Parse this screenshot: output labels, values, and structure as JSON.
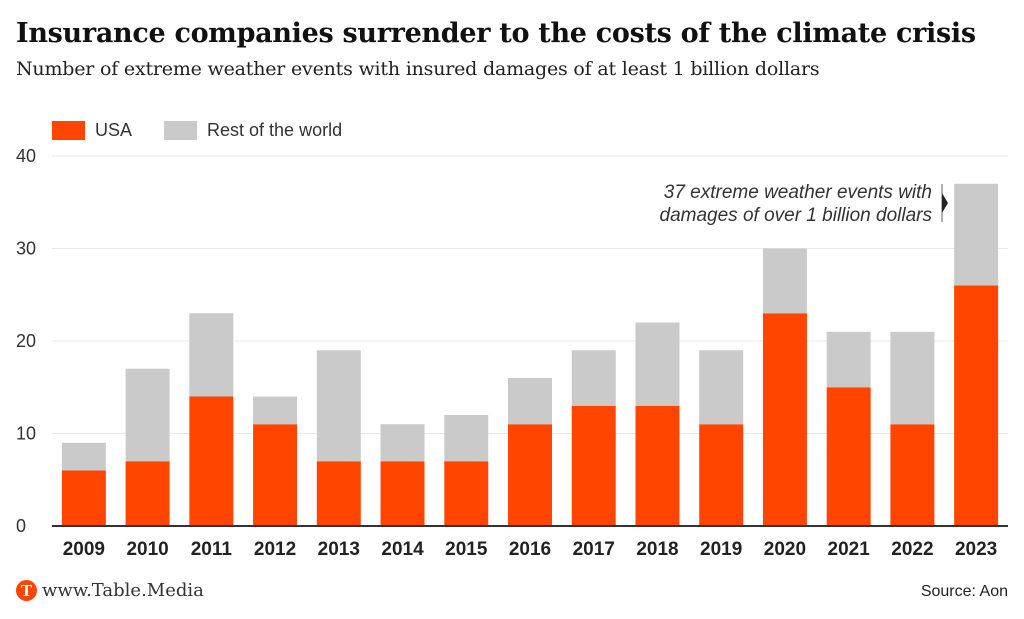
{
  "header": {
    "title": "Insurance companies surrender to the costs of the climate crisis",
    "subtitle": "Number of extreme weather events with insured damages of at least 1 billion dollars"
  },
  "legend": {
    "items": [
      {
        "label": "USA",
        "color": "#ff4500"
      },
      {
        "label": "Rest of the world",
        "color": "#cacaca"
      }
    ]
  },
  "annotation": {
    "line1": "37 extreme weather events with",
    "line2": "damages of over 1 billion dollars"
  },
  "footer": {
    "logo_letter": "T",
    "site": "www.Table.Media",
    "source": "Source: Aon"
  },
  "chart_data": {
    "type": "bar",
    "stacked": true,
    "title": "Insurance companies surrender to the costs of the climate crisis",
    "subtitle": "Number of extreme weather events with insured damages of at least 1 billion dollars",
    "xlabel": "",
    "ylabel": "",
    "ylim": [
      0,
      40
    ],
    "yticks": [
      0,
      10,
      20,
      30,
      40
    ],
    "grid": true,
    "legend_position": "top-left",
    "categories": [
      "2009",
      "2010",
      "2011",
      "2012",
      "2013",
      "2014",
      "2015",
      "2016",
      "2017",
      "2018",
      "2019",
      "2020",
      "2021",
      "2022",
      "2023"
    ],
    "series": [
      {
        "name": "USA",
        "color": "#ff4500",
        "values": [
          6,
          7,
          14,
          11,
          7,
          7,
          7,
          11,
          13,
          13,
          11,
          23,
          15,
          11,
          26
        ]
      },
      {
        "name": "Rest of the world",
        "color": "#cacaca",
        "values": [
          3,
          10,
          9,
          3,
          12,
          4,
          5,
          5,
          6,
          9,
          8,
          7,
          6,
          10,
          11
        ]
      }
    ],
    "totals": [
      9,
      17,
      23,
      14,
      19,
      11,
      12,
      16,
      19,
      22,
      19,
      30,
      21,
      21,
      37
    ],
    "annotations": [
      {
        "category": "2023",
        "text": "37 extreme weather events with damages of over 1 billion dollars"
      }
    ]
  }
}
